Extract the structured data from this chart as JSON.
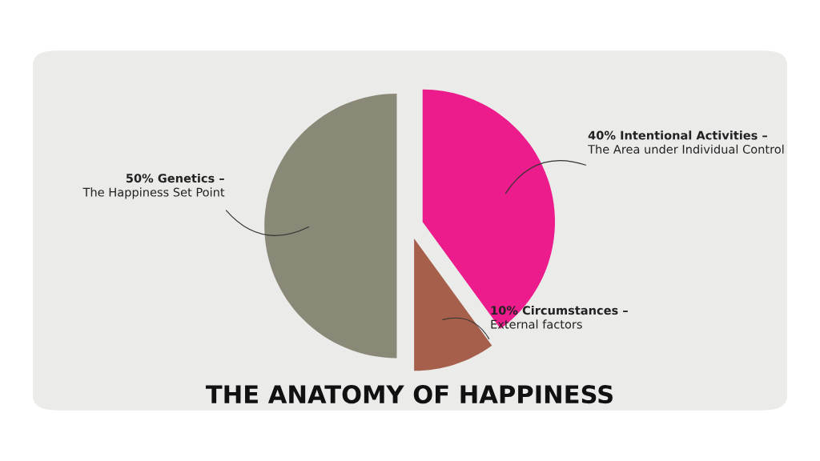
{
  "chart_data": {
    "type": "pie",
    "title": "THE ANATOMY OF HAPPINESS",
    "categories": [
      "Intentional Activities –\nThe Area under Individual Control",
      "Circumstances –\nExternal factors",
      "Genetics –\nThe Happiness Set Point"
    ],
    "values": [
      40,
      10,
      50
    ],
    "value_labels": [
      "40%",
      "10%",
      "50%"
    ],
    "colors": [
      "#ec1c8c",
      "#a65f4a",
      "#8a8877"
    ]
  }
}
